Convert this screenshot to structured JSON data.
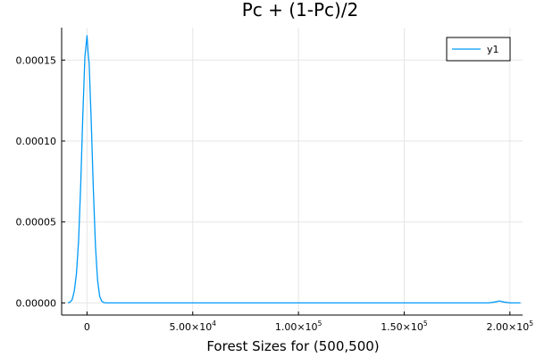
{
  "chart_data": {
    "type": "line",
    "title": "Pc + (1-Pc)/2",
    "xlabel": "Forest Sizes for (500,500)",
    "ylabel": "",
    "xlim": [
      -12000,
      206000
    ],
    "ylim": [
      -7.5e-06,
      0.00017
    ],
    "grid": true,
    "legend_position": "top-right",
    "x_ticks": [
      {
        "value": 0,
        "mantissa": "0",
        "exponent": ""
      },
      {
        "value": 50000,
        "mantissa": "5.00×10",
        "exponent": "4"
      },
      {
        "value": 100000,
        "mantissa": "1.00×10",
        "exponent": "5"
      },
      {
        "value": 150000,
        "mantissa": "1.50×10",
        "exponent": "5"
      },
      {
        "value": 200000,
        "mantissa": "2.00×10",
        "exponent": "5"
      }
    ],
    "y_ticks": [
      {
        "value": 0,
        "label": "0.00000"
      },
      {
        "value": 5e-05,
        "label": "0.00005"
      },
      {
        "value": 0.0001,
        "label": "0.00010"
      },
      {
        "value": 0.00015,
        "label": "0.00015"
      }
    ],
    "series": [
      {
        "name": "y1",
        "color": "#009af9",
        "x": [
          -9000,
          -8000,
          -7000,
          -6000,
          -5000,
          -4000,
          -3000,
          -2000,
          -1000,
          0,
          500,
          1000,
          2000,
          3000,
          4000,
          5000,
          6000,
          7000,
          8000,
          9000,
          10000,
          20000,
          50000,
          100000,
          150000,
          190000,
          193000,
          195000,
          197000,
          200000,
          205000
        ],
        "y": [
          0.0,
          5e-07,
          2e-06,
          7.5e-06,
          1.8e-05,
          3.8e-05,
          7.2e-05,
          0.000115,
          0.000152,
          0.000165,
          0.000155,
          0.000148,
          0.000112,
          7e-05,
          3.5e-05,
          1.4e-05,
          4e-06,
          1e-06,
          2e-07,
          0.0,
          0.0,
          0.0,
          0.0,
          0.0,
          0.0,
          0.0,
          6e-07,
          1.2e-06,
          6e-07,
          0.0,
          0.0
        ]
      }
    ]
  }
}
